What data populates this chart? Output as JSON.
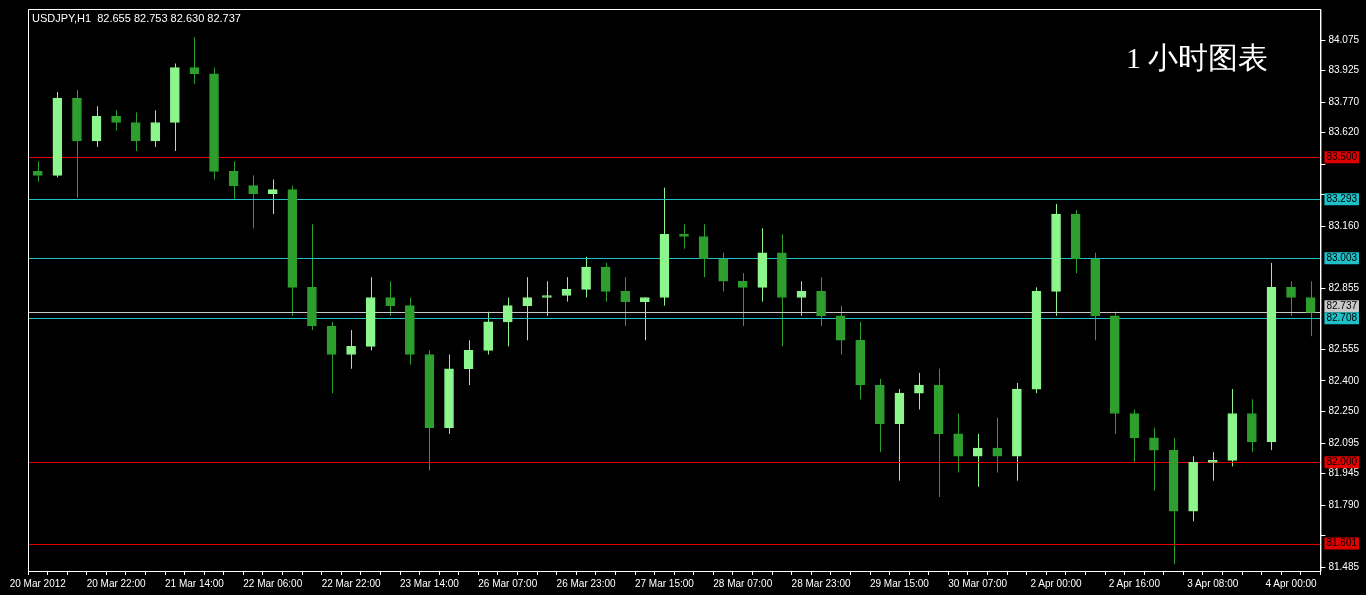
{
  "chart_data": {
    "type": "candlestick",
    "title": "USDJPY,H1  82.655 82.753 82.630 82.737",
    "annotations": [
      "1 小时图表"
    ],
    "categories": [
      "20 Mar 2012",
      null,
      null,
      null,
      "20 Mar 22:00",
      null,
      null,
      null,
      "21 Mar 14:00",
      null,
      null,
      null,
      "22 Mar 06:00",
      null,
      null,
      null,
      "22 Mar 22:00",
      null,
      null,
      null,
      "23 Mar 14:00",
      null,
      null,
      null,
      "26 Mar 07:00",
      null,
      null,
      null,
      "26 Mar 23:00",
      null,
      null,
      null,
      "27 Mar 15:00",
      null,
      null,
      null,
      "28 Mar 07:00",
      null,
      null,
      null,
      "28 Mar 23:00",
      null,
      null,
      null,
      "29 Mar 15:00",
      null,
      null,
      null,
      "30 Mar 07:00",
      null,
      null,
      null,
      "2 Apr 00:00",
      null,
      null,
      null,
      "2 Apr 16:00",
      null,
      null,
      null,
      "3 Apr 08:00",
      null,
      null,
      null,
      "4 Apr 00:00",
      null
    ],
    "ohlc": [
      [
        83.43,
        83.48,
        83.38,
        83.41
      ],
      [
        83.41,
        83.82,
        83.4,
        83.79
      ],
      [
        83.79,
        83.83,
        83.3,
        83.58
      ],
      [
        83.58,
        83.75,
        83.55,
        83.7
      ],
      [
        83.7,
        83.73,
        83.63,
        83.67
      ],
      [
        83.67,
        83.72,
        83.53,
        83.58
      ],
      [
        83.58,
        83.73,
        83.55,
        83.67
      ],
      [
        83.67,
        83.96,
        83.53,
        83.94
      ],
      [
        83.94,
        84.09,
        83.86,
        83.91
      ],
      [
        83.91,
        83.94,
        83.39,
        83.43
      ],
      [
        83.43,
        83.48,
        83.29,
        83.36
      ],
      [
        83.36,
        83.41,
        83.15,
        83.32
      ],
      [
        83.32,
        83.39,
        83.22,
        83.34
      ],
      [
        83.34,
        83.36,
        82.72,
        82.86
      ],
      [
        82.86,
        83.17,
        82.65,
        82.67
      ],
      [
        82.67,
        82.69,
        82.34,
        82.53
      ],
      [
        82.53,
        82.65,
        82.46,
        82.57
      ],
      [
        82.57,
        82.91,
        82.55,
        82.81
      ],
      [
        82.81,
        82.89,
        82.72,
        82.77
      ],
      [
        82.77,
        82.81,
        82.48,
        82.53
      ],
      [
        82.53,
        82.55,
        81.96,
        82.17
      ],
      [
        82.17,
        82.53,
        82.14,
        82.46
      ],
      [
        82.46,
        82.6,
        82.38,
        82.55
      ],
      [
        82.55,
        82.74,
        82.53,
        82.69
      ],
      [
        82.69,
        82.81,
        82.57,
        82.77
      ],
      [
        82.77,
        82.91,
        82.6,
        82.81
      ],
      [
        82.81,
        82.89,
        82.72,
        82.82
      ],
      [
        82.82,
        82.91,
        82.79,
        82.85
      ],
      [
        82.85,
        83.01,
        82.81,
        82.96
      ],
      [
        82.96,
        82.98,
        82.79,
        82.84
      ],
      [
        82.84,
        82.91,
        82.67,
        82.79
      ],
      [
        82.79,
        82.81,
        82.6,
        82.81
      ],
      [
        82.81,
        83.35,
        82.77,
        83.12
      ],
      [
        83.12,
        83.17,
        83.05,
        83.11
      ],
      [
        83.11,
        83.17,
        82.91,
        83.0
      ],
      [
        83.0,
        83.03,
        82.84,
        82.89
      ],
      [
        82.89,
        82.93,
        82.67,
        82.86
      ],
      [
        82.86,
        83.15,
        82.79,
        83.03
      ],
      [
        83.03,
        83.12,
        82.57,
        82.81
      ],
      [
        82.81,
        82.89,
        82.72,
        82.84
      ],
      [
        82.84,
        82.91,
        82.67,
        82.72
      ],
      [
        82.72,
        82.77,
        82.53,
        82.6
      ],
      [
        82.6,
        82.69,
        82.31,
        82.38
      ],
      [
        82.38,
        82.41,
        82.05,
        82.19
      ],
      [
        82.19,
        82.36,
        81.91,
        82.34
      ],
      [
        82.34,
        82.44,
        82.26,
        82.38
      ],
      [
        82.38,
        82.46,
        81.83,
        82.14
      ],
      [
        82.14,
        82.24,
        81.95,
        82.03
      ],
      [
        82.03,
        82.14,
        81.88,
        82.07
      ],
      [
        82.07,
        82.22,
        81.95,
        82.03
      ],
      [
        82.03,
        82.39,
        81.91,
        82.36
      ],
      [
        82.36,
        82.86,
        82.34,
        82.84
      ],
      [
        82.84,
        83.27,
        82.72,
        83.22
      ],
      [
        83.22,
        83.24,
        82.93,
        83.0
      ],
      [
        83.0,
        83.03,
        82.6,
        82.72
      ],
      [
        82.72,
        82.74,
        82.14,
        82.24
      ],
      [
        82.24,
        82.26,
        82.0,
        82.12
      ],
      [
        82.12,
        82.17,
        81.86,
        82.06
      ],
      [
        82.06,
        82.12,
        81.5,
        81.76
      ],
      [
        81.76,
        82.03,
        81.71,
        82.0
      ],
      [
        82.0,
        82.05,
        81.91,
        82.01
      ],
      [
        82.01,
        82.36,
        81.98,
        82.24
      ],
      [
        82.24,
        82.31,
        82.05,
        82.1
      ],
      [
        82.1,
        82.98,
        82.06,
        82.86
      ],
      [
        82.86,
        82.89,
        82.72,
        82.81
      ],
      [
        82.81,
        82.89,
        82.62,
        82.737
      ]
    ],
    "colors": [
      "#2e9e2e",
      "#8cf58c",
      "#2e9e2e",
      "#8cf58c",
      "#2e9e2e",
      "#2e9e2e",
      "#8cf58c",
      "#8cf58c",
      "#2e9e2e",
      "#2e9e2e",
      "#2e9e2e",
      "#2e9e2e",
      "#8cf58c",
      "#2e9e2e",
      "#2e9e2e",
      "#2e9e2e",
      "#8cf58c",
      "#8cf58c",
      "#2e9e2e",
      "#2e9e2e",
      "#2e9e2e",
      "#8cf58c",
      "#8cf58c",
      "#8cf58c",
      "#8cf58c",
      "#8cf58c",
      "#8cf58c",
      "#8cf58c",
      "#8cf58c",
      "#2e9e2e",
      "#2e9e2e",
      "#8cf58c",
      "#8cf58c",
      "#2e9e2e",
      "#2e9e2e",
      "#2e9e2e",
      "#2e9e2e",
      "#8cf58c",
      "#2e9e2e",
      "#8cf58c",
      "#2e9e2e",
      "#2e9e2e",
      "#2e9e2e",
      "#2e9e2e",
      "#8cf58c",
      "#8cf58c",
      "#2e9e2e",
      "#2e9e2e",
      "#8cf58c",
      "#2e9e2e",
      "#8cf58c",
      "#8cf58c",
      "#8cf58c",
      "#2e9e2e",
      "#2e9e2e",
      "#2e9e2e",
      "#2e9e2e",
      "#2e9e2e",
      "#2e9e2e",
      "#8cf58c",
      "#8cf58c",
      "#8cf58c",
      "#2e9e2e",
      "#8cf58c",
      "#2e9e2e",
      "#2e9e2e"
    ],
    "ylim": [
      81.466,
      84.228
    ],
    "yticks": [
      {
        "value": 81.485,
        "label": "81.485"
      },
      {
        "value": 81.64,
        "label": null
      },
      {
        "value": 81.79,
        "label": "81.790"
      },
      {
        "value": 81.945,
        "label": "81.945"
      },
      {
        "value": 82.095,
        "label": "82.095"
      },
      {
        "value": 82.25,
        "label": "82.250"
      },
      {
        "value": 82.4,
        "label": "82.400"
      },
      {
        "value": 82.555,
        "label": "82.555"
      },
      {
        "value": 82.855,
        "label": "82.855"
      },
      {
        "value": 83.16,
        "label": "83.160"
      },
      {
        "value": 83.315,
        "label": null
      },
      {
        "value": 83.465,
        "label": null
      },
      {
        "value": 83.62,
        "label": "83.620"
      },
      {
        "value": 83.77,
        "label": "83.770"
      },
      {
        "value": 83.925,
        "label": "83.925"
      },
      {
        "value": 84.075,
        "label": "84.075"
      }
    ],
    "ref_lines": [
      {
        "axis": "y",
        "value": 83.5,
        "label": "83.500",
        "color": "#e00000"
      },
      {
        "axis": "y",
        "value": 83.293,
        "label": "83.293",
        "color": "#20c0c8"
      },
      {
        "axis": "y",
        "value": 83.003,
        "label": "83.003",
        "color": "#20c0c8"
      },
      {
        "axis": "y",
        "value": 82.737,
        "label": "82.737",
        "color": "#c8c8c8"
      },
      {
        "axis": "y",
        "value": 82.708,
        "label": "82.708",
        "color": "#20c0c8"
      },
      {
        "axis": "y",
        "value": 82.0,
        "label": "82.000",
        "color": "#e00000"
      },
      {
        "axis": "y",
        "value": 81.601,
        "label": "81.601",
        "color": "#e00000"
      }
    ]
  }
}
